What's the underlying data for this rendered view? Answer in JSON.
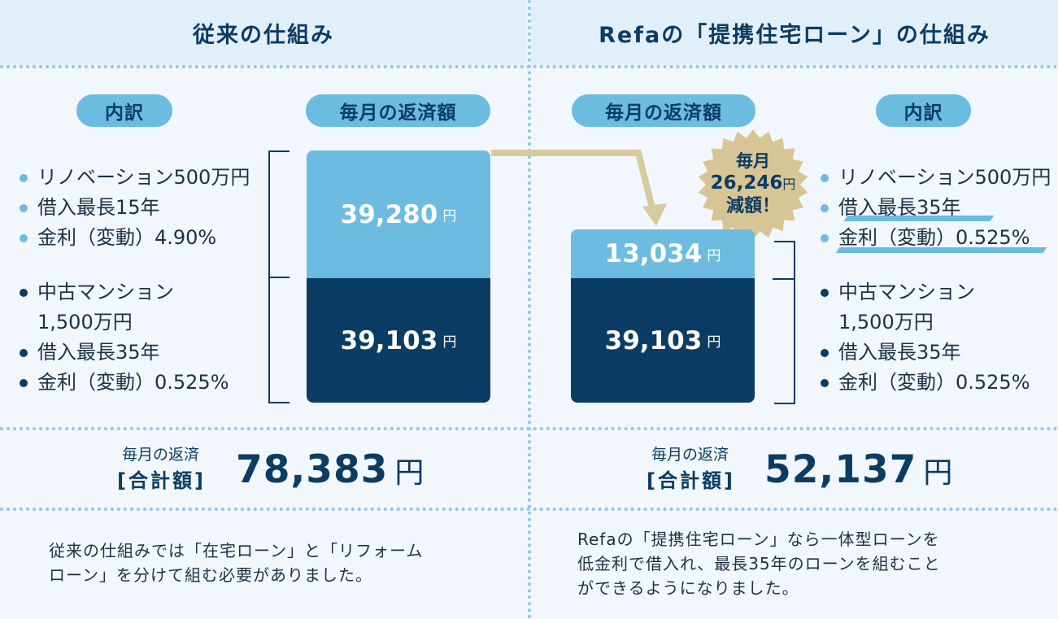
{
  "left": {
    "title": "従来の仕組み",
    "pill_breakdown": "内訳",
    "pill_monthly": "毎月の返済額",
    "reno_items": [
      "リノベーション500万円",
      "借入最長15年",
      "金利（変動）4.90%"
    ],
    "house_items": [
      "中古マンション",
      "1,500万円",
      "借入最長35年",
      "金利（変動）0.525%"
    ],
    "bar_top_value": "39,280",
    "bar_bottom_value": "39,103",
    "yen": "円",
    "total_sub": "毎月の返済",
    "total_main": "[合計額]",
    "total_value": "78,383",
    "note_lines": [
      "従来の仕組みでは「在宅ローン」と「リフォーム",
      "ローン」を分けて組む必要がありました。"
    ]
  },
  "right": {
    "title": "Refaの「提携住宅ローン」の仕組み",
    "pill_breakdown": "内訳",
    "pill_monthly": "毎月の返済額",
    "reno_items": [
      "リノベーション500万円",
      "借入最長35年",
      "金利（変動）0.525%"
    ],
    "house_items": [
      "中古マンション",
      "1,500万円",
      "借入最長35年",
      "金利（変動）0.525%"
    ],
    "bar_top_value": "13,034",
    "bar_bottom_value": "39,103",
    "yen": "円",
    "badge_line1": "毎月",
    "badge_amount": "26,246",
    "badge_line3": "減額！",
    "total_sub": "毎月の返済",
    "total_main": "[合計額]",
    "total_value": "52,137",
    "note_lines": [
      "Refaの「提携住宅ローン」なら一体型ローンを",
      "低金利で借入れ、最長35年のローンを組むこと",
      "ができるようになりました。"
    ]
  },
  "chart_data": {
    "type": "bar",
    "categories": [
      "従来の仕組み",
      "Refaの「提携住宅ローン」の仕組み"
    ],
    "series": [
      {
        "values": [
          39103,
          39103
        ]
      },
      {
        "values": [
          39280,
          13034
        ]
      }
    ],
    "totals": [
      78383,
      52137
    ]
  },
  "colors": {
    "accent_light": "#6cbbe0",
    "navy": "#0b3c63",
    "gold": "#d8c595",
    "arrow": "#d9c9a0",
    "background": "#f1f7fc",
    "header_bg": "#e1eff9"
  }
}
